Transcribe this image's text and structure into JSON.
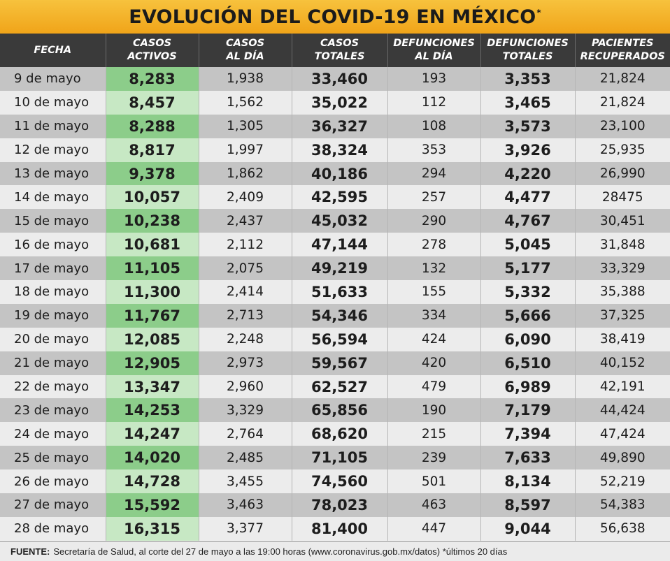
{
  "title": "EVOLUCIÓN DEL COVID-19 EN MÉXICO",
  "title_mark": "*",
  "columns": [
    {
      "line1": "FECHA",
      "line2": ""
    },
    {
      "line1": "CASOS",
      "line2": "ACTIVOS"
    },
    {
      "line1": "CASOS",
      "line2": "AL DÍA"
    },
    {
      "line1": "CASOS",
      "line2": "TOTALES"
    },
    {
      "line1": "DEFUNCIONES",
      "line2": "AL DÍA"
    },
    {
      "line1": "DEFUNCIONES",
      "line2": "TOTALES"
    },
    {
      "line1": "PACIENTES",
      "line2": "RECUPERADOS"
    }
  ],
  "rows": [
    [
      "9 de mayo",
      "8,283",
      "1,938",
      "33,460",
      "193",
      "3,353",
      "21,824"
    ],
    [
      "10 de mayo",
      "8,457",
      "1,562",
      "35,022",
      "112",
      "3,465",
      "21,824"
    ],
    [
      "11 de mayo",
      "8,288",
      "1,305",
      "36,327",
      "108",
      "3,573",
      "23,100"
    ],
    [
      "12 de mayo",
      "8,817",
      "1,997",
      "38,324",
      "353",
      "3,926",
      "25,935"
    ],
    [
      "13 de mayo",
      "9,378",
      "1,862",
      "40,186",
      "294",
      "4,220",
      "26,990"
    ],
    [
      "14 de mayo",
      "10,057",
      "2,409",
      "42,595",
      "257",
      "4,477",
      "28475"
    ],
    [
      "15 de mayo",
      "10,238",
      "2,437",
      "45,032",
      "290",
      "4,767",
      "30,451"
    ],
    [
      "16 de mayo",
      "10,681",
      "2,112",
      "47,144",
      "278",
      "5,045",
      "31,848"
    ],
    [
      "17 de mayo",
      "11,105",
      "2,075",
      "49,219",
      "132",
      "5,177",
      "33,329"
    ],
    [
      "18 de mayo",
      "11,300",
      "2,414",
      "51,633",
      "155",
      "5,332",
      "35,388"
    ],
    [
      "19 de mayo",
      "11,767",
      "2,713",
      "54,346",
      "334",
      "5,666",
      "37,325"
    ],
    [
      "20 de mayo",
      "12,085",
      "2,248",
      "56,594",
      "424",
      "6,090",
      "38,419"
    ],
    [
      "21 de mayo",
      "12,905",
      "2,973",
      "59,567",
      "420",
      "6,510",
      "40,152"
    ],
    [
      "22 de mayo",
      "13,347",
      "2,960",
      "62,527",
      "479",
      "6,989",
      "42,191"
    ],
    [
      "23 de mayo",
      "14,253",
      "3,329",
      "65,856",
      "190",
      "7,179",
      "44,424"
    ],
    [
      "24 de mayo",
      "14,247",
      "2,764",
      "68,620",
      "215",
      "7,394",
      "47,424"
    ],
    [
      "25 de mayo",
      "14,020",
      "2,485",
      "71,105",
      "239",
      "7,633",
      "49,890"
    ],
    [
      "26 de mayo",
      "14,728",
      "3,455",
      "74,560",
      "501",
      "8,134",
      "52,219"
    ],
    [
      "27 de mayo",
      "15,592",
      "3,463",
      "78,023",
      "463",
      "8,597",
      "54,383"
    ],
    [
      "28 de mayo",
      "16,315",
      "3,377",
      "81,400",
      "447",
      "9,044",
      "56,638"
    ]
  ],
  "footer": {
    "label": "FUENTE:",
    "text": "Secretaría de Salud, al corte del 27 de mayo a las 19:00 horas (www.coronavirus.gob.mx/datos) *últimos 20 días"
  },
  "colors": {
    "title_bg": "#f2ac22",
    "header_bg": "#3a3a3a",
    "row_dark": "#c4c4c4",
    "row_light": "#ececec",
    "active_dark": "#8ccd8a",
    "active_light": "#c7e8c4"
  },
  "chart_data": {
    "type": "table",
    "title": "EVOLUCIÓN DEL COVID-19 EN MÉXICO",
    "columns": [
      "FECHA",
      "CASOS ACTIVOS",
      "CASOS AL DÍA",
      "CASOS TOTALES",
      "DEFUNCIONES AL DÍA",
      "DEFUNCIONES TOTALES",
      "PACIENTES RECUPERADOS"
    ],
    "source": "Secretaría de Salud, al corte del 27 de mayo a las 19:00 horas (www.coronavirus.gob.mx/datos) *últimos 20 días"
  }
}
